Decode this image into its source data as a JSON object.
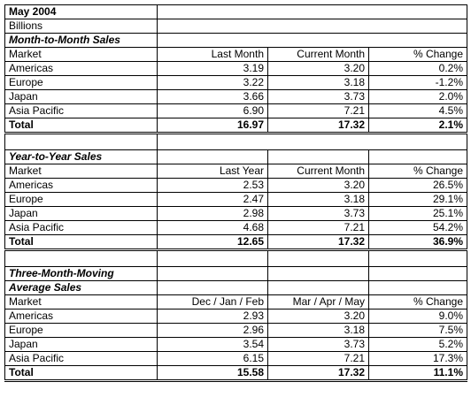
{
  "title": "May 2004",
  "units": "Billions",
  "sections": [
    {
      "heading": "Month-to-Month Sales",
      "columns": [
        "Market",
        "Last Month",
        "Current Month",
        "% Change"
      ],
      "rows": [
        [
          "Americas",
          "3.19",
          "3.20",
          "0.2%"
        ],
        [
          "Europe",
          "3.22",
          "3.18",
          "-1.2%"
        ],
        [
          "Japan",
          "3.66",
          "3.73",
          "2.0%"
        ],
        [
          "Asia Pacific",
          "6.90",
          "7.21",
          "4.5%"
        ]
      ],
      "total": [
        "Total",
        "16.97",
        "17.32",
        "2.1%"
      ]
    },
    {
      "heading": "Year-to-Year Sales",
      "columns": [
        "Market",
        "Last Year",
        "Current Month",
        "% Change"
      ],
      "rows": [
        [
          "Americas",
          "2.53",
          "3.20",
          "26.5%"
        ],
        [
          "Europe",
          "2.47",
          "3.18",
          "29.1%"
        ],
        [
          "Japan",
          "2.98",
          "3.73",
          "25.1%"
        ],
        [
          "Asia Pacific",
          "4.68",
          "7.21",
          "54.2%"
        ]
      ],
      "total": [
        "Total",
        "12.65",
        "17.32",
        "36.9%"
      ]
    },
    {
      "heading_line1": "Three-Month-Moving",
      "heading_line2": "Average Sales",
      "columns": [
        "Market",
        "Dec / Jan / Feb",
        "Mar / Apr / May",
        "% Change"
      ],
      "rows": [
        [
          "Americas",
          "2.93",
          "3.20",
          "9.0%"
        ],
        [
          "Europe",
          "2.96",
          "3.18",
          "7.5%"
        ],
        [
          "Japan",
          "3.54",
          "3.73",
          "5.2%"
        ],
        [
          "Asia Pacific",
          "6.15",
          "7.21",
          "17.3%"
        ]
      ],
      "total": [
        "Total",
        "15.58",
        "17.32",
        "11.1%"
      ]
    }
  ]
}
